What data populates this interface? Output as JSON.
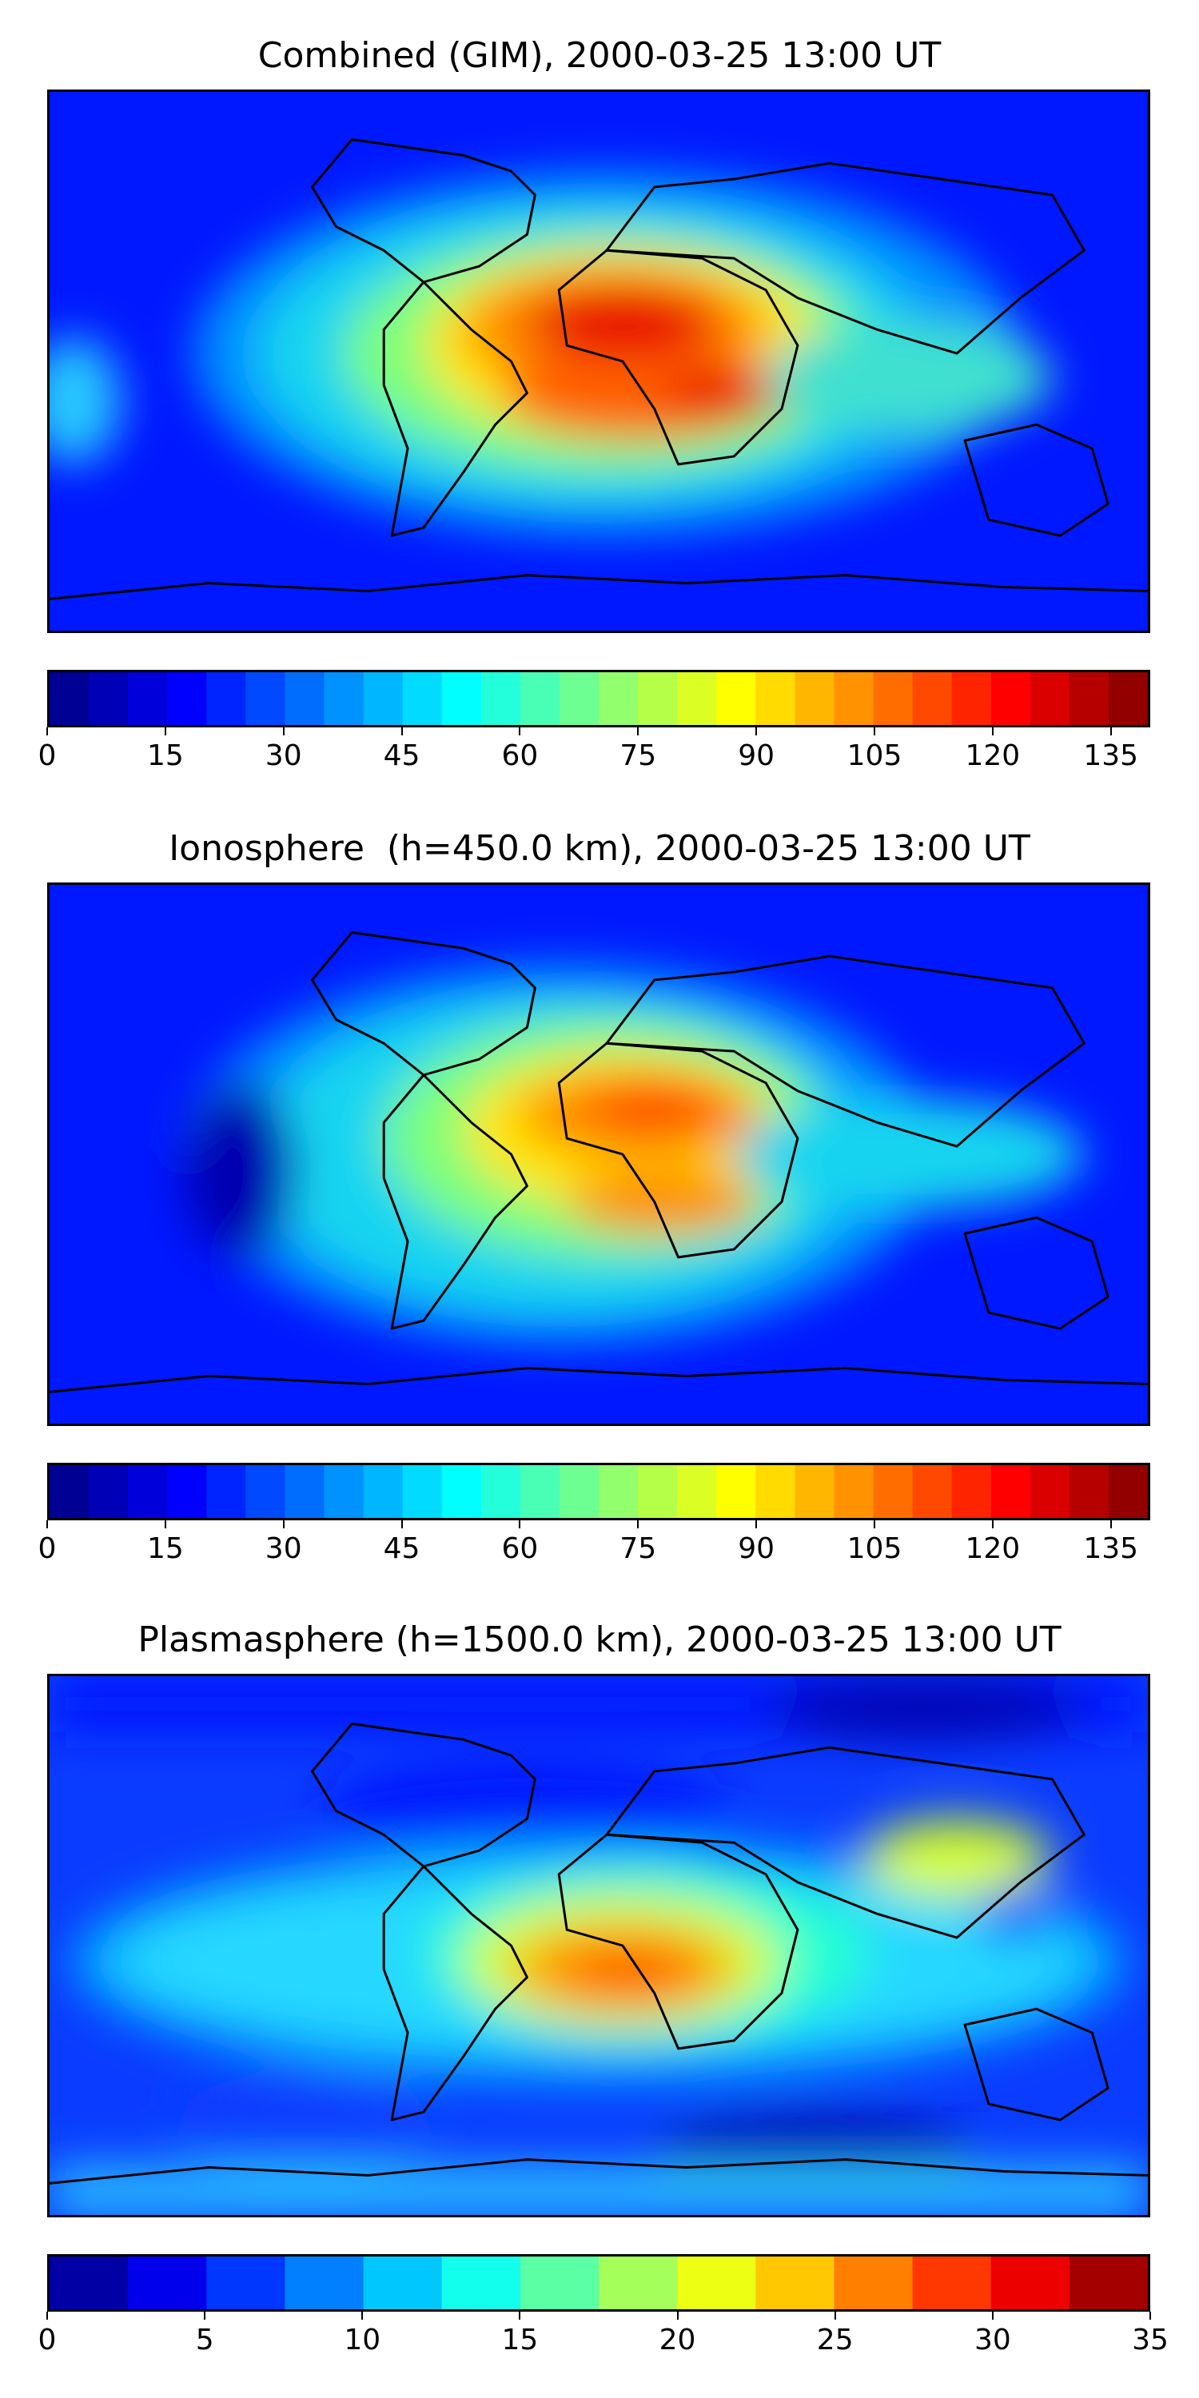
{
  "panels": [
    {
      "title": "Combined (GIM), 2000-03-25 13:00 UT",
      "colorbar": {
        "min": 0,
        "max": 140,
        "levels": 28,
        "tick_labels": [
          "0",
          "15",
          "30",
          "45",
          "60",
          "75",
          "90",
          "105",
          "120",
          "135"
        ]
      }
    },
    {
      "title": "Ionosphere  (h=450.0 km), 2000-03-25 13:00 UT",
      "colorbar": {
        "min": 0,
        "max": 140,
        "levels": 28,
        "tick_labels": [
          "0",
          "15",
          "30",
          "45",
          "60",
          "75",
          "90",
          "105",
          "120",
          "135"
        ]
      }
    },
    {
      "title": "Plasmasphere (h=1500.0 km), 2000-03-25 13:00 UT",
      "colorbar": {
        "min": 0,
        "max": 35,
        "levels": 14,
        "tick_labels": [
          "0",
          "5",
          "10",
          "15",
          "20",
          "25",
          "30",
          "35"
        ]
      }
    }
  ],
  "colormap": "jet"
}
